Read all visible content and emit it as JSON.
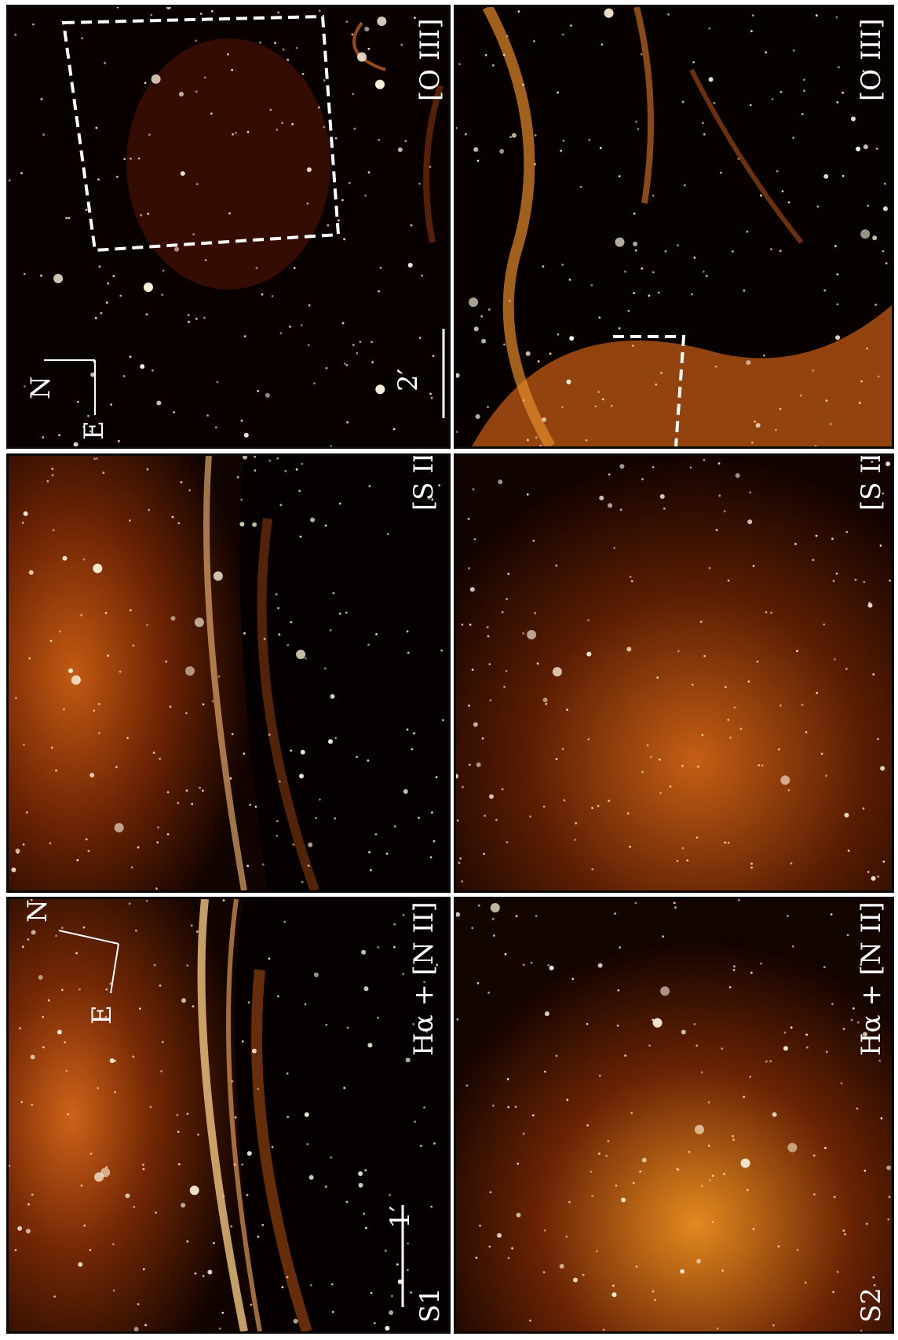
{
  "figure": {
    "field_labels": [
      "S1",
      "S2"
    ],
    "filters": [
      "Hα + [N II]",
      "[S II]",
      "[O III]"
    ],
    "scale_bars": [
      "1′",
      "2′"
    ],
    "compass": {
      "north": "N",
      "east": "E"
    }
  },
  "panels": [
    {
      "id": "s1-halpha",
      "field": "S1",
      "filter": "Hα + [N II]",
      "field_label": "S1",
      "filter_label": "Hα + [N II]",
      "scale_label": "1′",
      "compass": true
    },
    {
      "id": "s1-sii",
      "field": "S1",
      "filter": "[S II]",
      "filter_label": "[S II]"
    },
    {
      "id": "s1-oiii",
      "field": "S1",
      "filter": "[O III]",
      "filter_label": "[O III]",
      "scale_label": "2′",
      "compass": true
    },
    {
      "id": "s2-halpha",
      "field": "S2",
      "filter": "Hα + [N II]",
      "field_label": "S2",
      "filter_label": "Hα + [N II]"
    },
    {
      "id": "s2-sii",
      "field": "S2",
      "filter": "[S II]",
      "filter_label": "[S II]"
    },
    {
      "id": "s2-oiii",
      "field": "S2",
      "filter": "[O III]",
      "filter_label": "[O III]"
    }
  ],
  "colors": {
    "background": "#000000",
    "emission_low": "#5a1a00",
    "emission_high": "#ffb347",
    "annotation": "#ffffff"
  }
}
